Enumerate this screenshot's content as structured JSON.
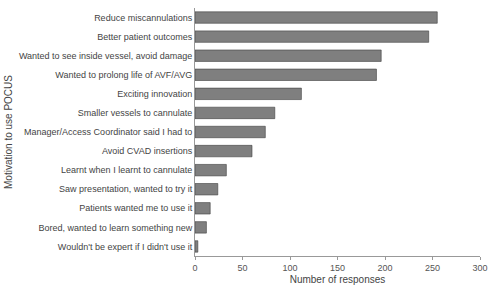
{
  "chart_data": {
    "type": "bar",
    "orientation": "horizontal",
    "categories": [
      "Reduce miscannulations",
      "Better patient outcomes",
      "Wanted to see inside vessel, avoid damage",
      "Wanted to prolong life of AVF/AVG",
      "Exciting innovation",
      "Smaller vessels to cannulate",
      "Manager/Access Coordinator said I had to",
      "Avoid CVAD insertions",
      "Learnt when I learnt to cannulate",
      "Saw presentation, wanted to try it",
      "Patients wanted me to use it",
      "Bored, wanted to learn something new",
      "Wouldn't be expert if I didn't use it"
    ],
    "values": [
      255,
      246,
      196,
      191,
      112,
      84,
      74,
      60,
      33,
      24,
      16,
      12,
      3
    ],
    "color": "#7f7f7f",
    "x_label": "Number of responses",
    "y_label": "Motivation to use POCUS",
    "xlim": [
      0,
      300
    ],
    "xticks": [
      0,
      50,
      100,
      150,
      200,
      250,
      300
    ],
    "grid": false
  }
}
